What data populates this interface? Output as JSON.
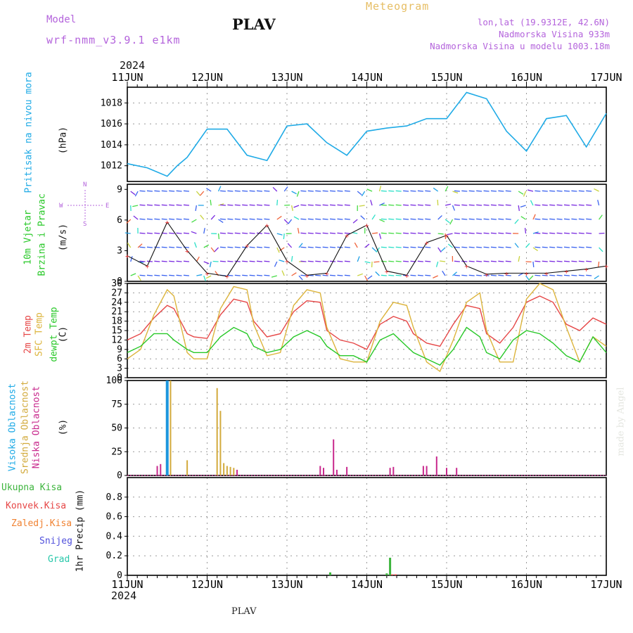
{
  "header": {
    "model_label": "Model",
    "model_name": "wrf-nmm_v3.9.1 e1km",
    "title": "PLAV",
    "meteogram": "Meteogram",
    "lonlat": "lon,lat (19.9312E, 42.6N)",
    "elevation": "Nadmorska Visina 933m",
    "model_elevation": "Nadmorska Visina u modelu 1003.18m",
    "year_top": "2024",
    "year_bottom": "2024",
    "footer": "PLAV",
    "credit": "made by Angel"
  },
  "time_axis": {
    "labels": [
      "11JUN",
      "12JUN",
      "13JUN",
      "14JUN",
      "15JUN",
      "16JUN",
      "17JUN"
    ]
  },
  "panels": {
    "pressure": {
      "label": "Pritisak na nivou mora",
      "unit": "(hPa)",
      "ticks": [
        "1012",
        "1014",
        "1016",
        "1018"
      ]
    },
    "wind": {
      "label1": "10m Vjetar",
      "label2": "Brzina i Pravac",
      "unit": "(m/s)",
      "ticks": [
        "0",
        "3",
        "6",
        "9"
      ],
      "compass_n": "N",
      "compass_s": "S",
      "compass_w": "W",
      "compass_e": "E"
    },
    "temp": {
      "label1": "2m Temp",
      "label2": "SFC Temp",
      "label3": "dewpt Temp",
      "unit": "(C)",
      "ticks": [
        "0",
        "3",
        "6",
        "9",
        "12",
        "15",
        "18",
        "21",
        "24",
        "27",
        "30"
      ]
    },
    "cloud": {
      "label1": "Visoka Oblacnost",
      "label2": "Srednja Oblacnost",
      "label3": "Niska Oblacnost",
      "unit": "(%)",
      "ticks": [
        "0",
        "25",
        "50",
        "75",
        "100"
      ]
    },
    "precip": {
      "legend": [
        "Ukupna Kisa",
        "Konvek.Kisa",
        "Zaledj.Kisa",
        "Snijeg",
        "Grad"
      ],
      "unit": "1hr Precip (mm)",
      "ticks": [
        "0",
        "0.2",
        "0.4",
        "0.6",
        "0.8"
      ]
    }
  },
  "colors": {
    "pressure": "#1eaae6",
    "temp2m": "#e64646",
    "sfc": "#dcb43c",
    "dewpt": "#28c828",
    "cloud_high": "#1e96dc",
    "cloud_mid": "#d2aa3c",
    "cloud_low": "#c8288c",
    "rain_total": "#3cb43c",
    "rain_conv": "#e64646",
    "rain_frz": "#f08232",
    "snow": "#5050dc",
    "hail": "#28c8aa",
    "model_label": "#b464dc",
    "meteogram": "#e6be64"
  },
  "chart_data": [
    {
      "type": "line",
      "ylabel": "Pritisak na nivou mora (hPa)",
      "ylim": [
        1010.5,
        1019.5
      ],
      "x_unit": "hours since 11JUN 00UTC",
      "series": [
        {
          "values_x": [
            0,
            6,
            12,
            15,
            18,
            24,
            30,
            36,
            42,
            48,
            54,
            60,
            66,
            72,
            78,
            84,
            90,
            96,
            102,
            108,
            114,
            120,
            126,
            132,
            138,
            144
          ],
          "values": [
            1012.2,
            1011.8,
            1011.0,
            1012.0,
            1012.8,
            1015.5,
            1015.5,
            1013.0,
            1012.5,
            1015.8,
            1016.0,
            1014.2,
            1013.0,
            1015.3,
            1015.6,
            1015.8,
            1016.5,
            1016.5,
            1019.0,
            1018.4,
            1015.3,
            1013.4,
            1016.5,
            1016.8,
            1013.8,
            1017.0
          ]
        }
      ]
    },
    {
      "type": "line",
      "ylabel": "10m Vjetar Brzina i Pravac (m/s)",
      "ylim": [
        0,
        9.5
      ],
      "x_unit": "hours since 11JUN 00UTC",
      "series": [
        {
          "values_x": [
            0,
            6,
            12,
            18,
            24,
            30,
            36,
            42,
            48,
            54,
            60,
            66,
            72,
            78,
            84,
            90,
            96,
            102,
            108,
            114,
            120,
            126,
            132,
            138,
            144
          ],
          "values": [
            2.5,
            1.5,
            5.8,
            3.0,
            0.8,
            0.5,
            3.5,
            5.5,
            2.0,
            0.6,
            0.8,
            4.5,
            5.5,
            1.0,
            0.6,
            3.8,
            4.5,
            1.5,
            0.7,
            0.8,
            0.8,
            0.8,
            1.0,
            1.2,
            1.5
          ]
        }
      ]
    },
    {
      "type": "line",
      "ylabel": "Temp (C)",
      "ylim": [
        0,
        30
      ],
      "x_unit": "hours since 11JUN 00UTC",
      "series": [
        {
          "name": "2m Temp",
          "values_x": [
            0,
            4,
            8,
            12,
            14,
            18,
            20,
            24,
            28,
            32,
            36,
            38,
            42,
            46,
            50,
            54,
            58,
            60,
            64,
            68,
            72,
            76,
            80,
            84,
            86,
            90,
            94,
            98,
            102,
            106,
            108,
            112,
            116,
            120,
            124,
            128,
            132,
            136,
            140,
            144
          ],
          "values": [
            12,
            14,
            19,
            23,
            22,
            14,
            13,
            12.5,
            20,
            25,
            24,
            18,
            13,
            14,
            21,
            24.5,
            24,
            15,
            12,
            11,
            9,
            17,
            19.5,
            18,
            14,
            11,
            10,
            17,
            23,
            22,
            14,
            11,
            16,
            24,
            26,
            24,
            17,
            15,
            19,
            17
          ]
        },
        {
          "name": "SFC Temp",
          "values_x": [
            0,
            4,
            8,
            12,
            14,
            18,
            20,
            24,
            28,
            32,
            36,
            38,
            42,
            46,
            50,
            54,
            58,
            60,
            64,
            68,
            72,
            76,
            80,
            84,
            86,
            90,
            94,
            98,
            102,
            106,
            108,
            112,
            116,
            120,
            124,
            128,
            132,
            136,
            140,
            144
          ],
          "values": [
            6,
            9,
            20,
            28,
            26,
            8,
            6,
            6,
            22,
            29,
            28,
            17,
            7,
            8,
            23,
            28,
            27,
            16,
            6,
            5,
            5,
            18,
            24,
            23,
            16,
            5,
            2,
            12,
            24,
            27,
            15,
            5,
            5,
            25,
            30,
            28,
            16,
            5,
            13,
            10
          ]
        },
        {
          "name": "dewpt Temp",
          "values_x": [
            0,
            4,
            8,
            12,
            14,
            18,
            20,
            24,
            28,
            32,
            36,
            38,
            42,
            46,
            50,
            54,
            58,
            60,
            64,
            68,
            72,
            76,
            80,
            84,
            86,
            90,
            94,
            98,
            102,
            106,
            108,
            112,
            116,
            120,
            124,
            128,
            132,
            136,
            140,
            144
          ],
          "values": [
            8,
            10,
            14,
            14,
            12,
            9,
            8,
            8,
            13,
            16,
            14,
            10,
            8,
            9,
            13,
            15,
            13,
            10,
            7,
            7,
            5,
            12,
            14,
            10,
            8,
            6,
            4,
            9,
            16,
            13,
            8,
            6,
            12,
            15,
            14,
            11,
            7,
            5,
            13,
            8
          ]
        }
      ]
    },
    {
      "type": "bar",
      "ylabel": "Oblacnost (%)",
      "ylim": [
        0,
        100
      ],
      "x_unit": "hours since 11JUN 00UTC",
      "series": [
        {
          "name": "Visoka Oblacnost",
          "values_x": [
            12
          ],
          "values": [
            100
          ]
        },
        {
          "name": "Srednja Oblacnost",
          "values_x": [
            13,
            18,
            27,
            28,
            29,
            30,
            31,
            32
          ],
          "values": [
            100,
            16,
            92,
            68,
            13,
            10,
            9,
            8
          ]
        },
        {
          "name": "Niska Oblacnost",
          "values_x": [
            9,
            10,
            33,
            58,
            59,
            62,
            63,
            66,
            79,
            80,
            89,
            90,
            93,
            96,
            99
          ],
          "values": [
            10,
            12,
            6,
            10,
            8,
            38,
            6,
            9,
            8,
            9,
            10,
            10,
            20,
            8,
            8
          ]
        }
      ]
    },
    {
      "type": "bar",
      "ylabel": "1hr Precip (mm)",
      "ylim": [
        0,
        1.0
      ],
      "x_unit": "hours since 11JUN 00UTC",
      "series": [
        {
          "name": "Ukupna Kisa",
          "values_x": [
            61,
            78,
            79
          ],
          "values": [
            0.03,
            0.02,
            0.18
          ]
        },
        {
          "name": "Konvek.Kisa",
          "values_x": [
            79,
            80
          ],
          "values": [
            0.01,
            0.01
          ]
        }
      ]
    }
  ]
}
